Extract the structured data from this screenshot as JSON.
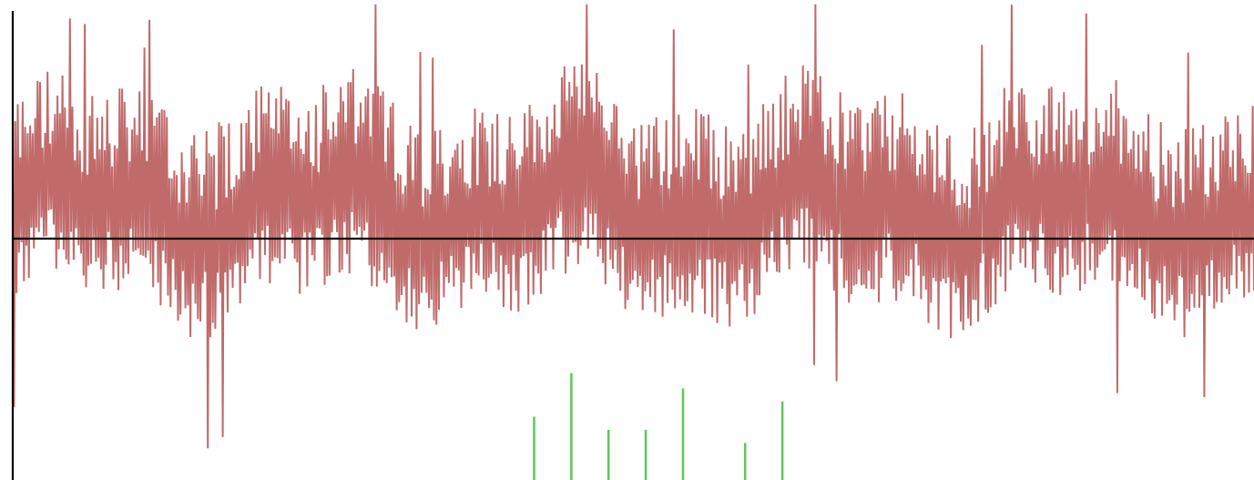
{
  "chart_data": {
    "type": "line",
    "title": "",
    "xlabel": "",
    "ylabel": "",
    "grid": false,
    "legend": "none",
    "xlim": [
      0,
      1000
    ],
    "ylim": [
      -1.2,
      1.0
    ],
    "baseline": 0,
    "series": [
      {
        "kind": "oscillating signal",
        "color": "#c06a6a",
        "points": 1000,
        "envelope": {
          "upper_peak": 0.92,
          "lower_trough": -0.95,
          "typical_positive_swing": 0.45,
          "typical_negative_swing": -0.35
        }
      },
      {
        "kind": "spikes",
        "color": "#5fc45f",
        "x": [
          420,
          450,
          480,
          510,
          540,
          590,
          620
        ],
        "values": [
          -0.91,
          -0.71,
          -0.97,
          -0.97,
          -0.78,
          -1.03,
          -0.84
        ]
      }
    ],
    "colors": {
      "axis": "#000000",
      "background": "#ffffff"
    }
  }
}
